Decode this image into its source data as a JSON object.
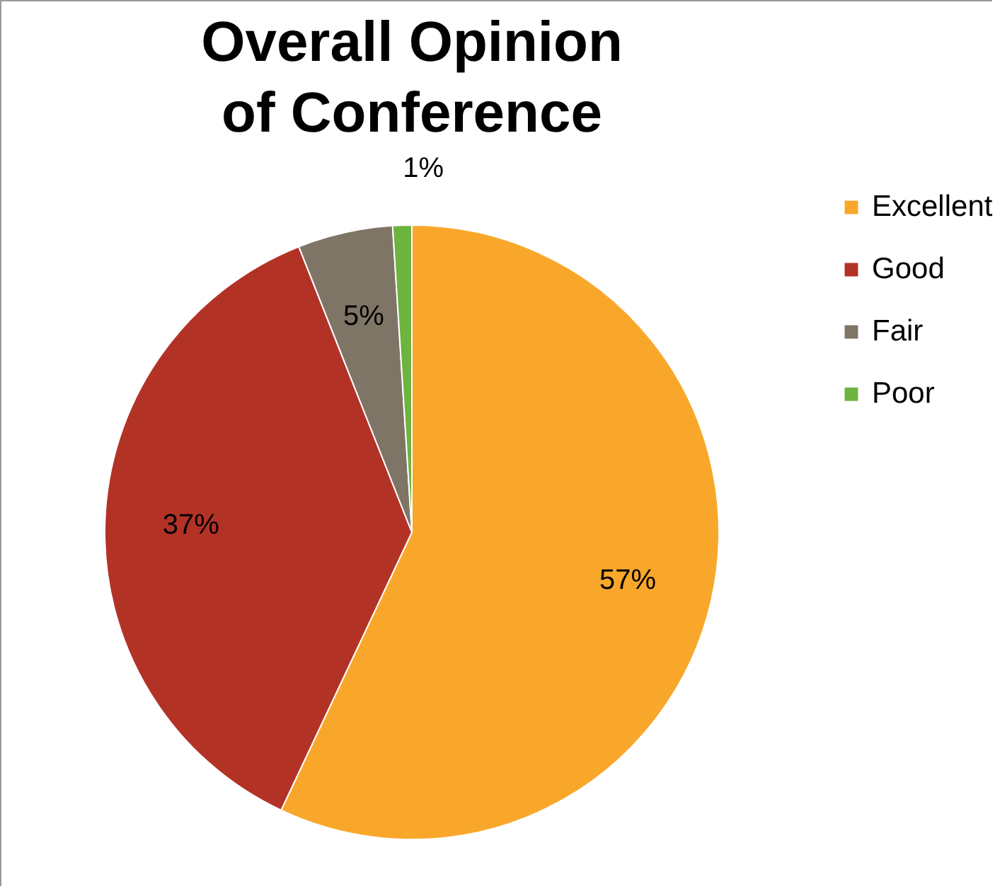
{
  "chart_data": {
    "type": "pie",
    "title": "Overall Opinion of Conference",
    "categories": [
      "Excellent",
      "Good",
      "Fair",
      "Poor"
    ],
    "values": [
      57,
      37,
      5,
      1
    ],
    "colors": [
      "#f9a72b",
      "#b33226",
      "#7f7566",
      "#6db33f"
    ],
    "value_labels": [
      "57%",
      "37%",
      "5%",
      "1%"
    ],
    "legend": "right"
  }
}
